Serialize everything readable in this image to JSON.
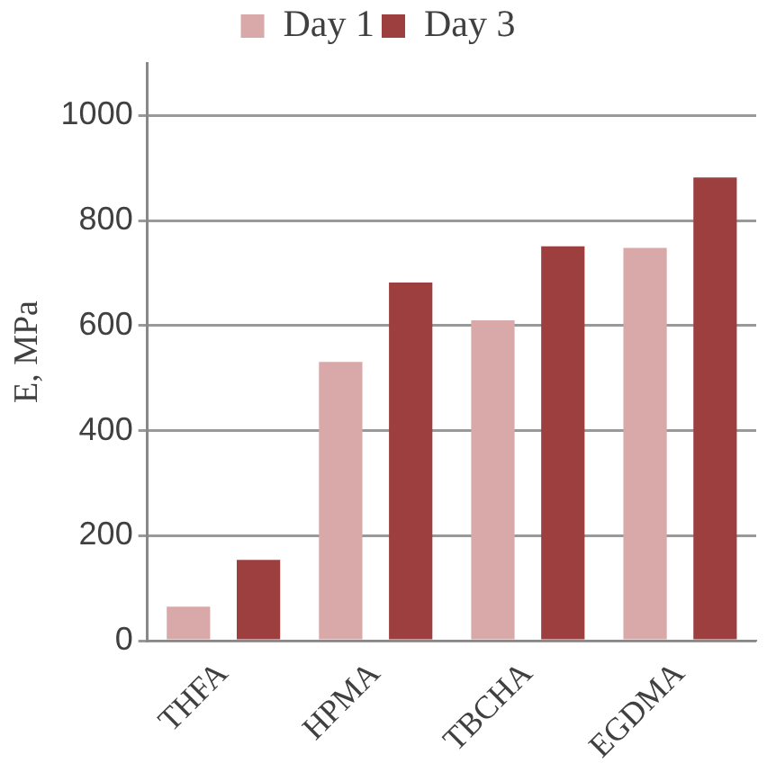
{
  "chart_data": {
    "type": "bar",
    "ylabel": "E, MPa",
    "categories": [
      "THFA",
      "HPMA",
      "TBCHA",
      "EGDMA"
    ],
    "series": [
      {
        "name": "Day 1",
        "color": "#d9a9aa",
        "values": [
          65,
          531,
          610,
          748
        ]
      },
      {
        "name": "Day 3",
        "color": "#9e3f3f",
        "values": [
          154,
          682,
          751,
          882
        ]
      }
    ],
    "ylim": [
      0,
      1100
    ],
    "yticks": [
      0,
      200,
      400,
      600,
      800,
      1000
    ],
    "grid": "y",
    "legend": "top"
  }
}
